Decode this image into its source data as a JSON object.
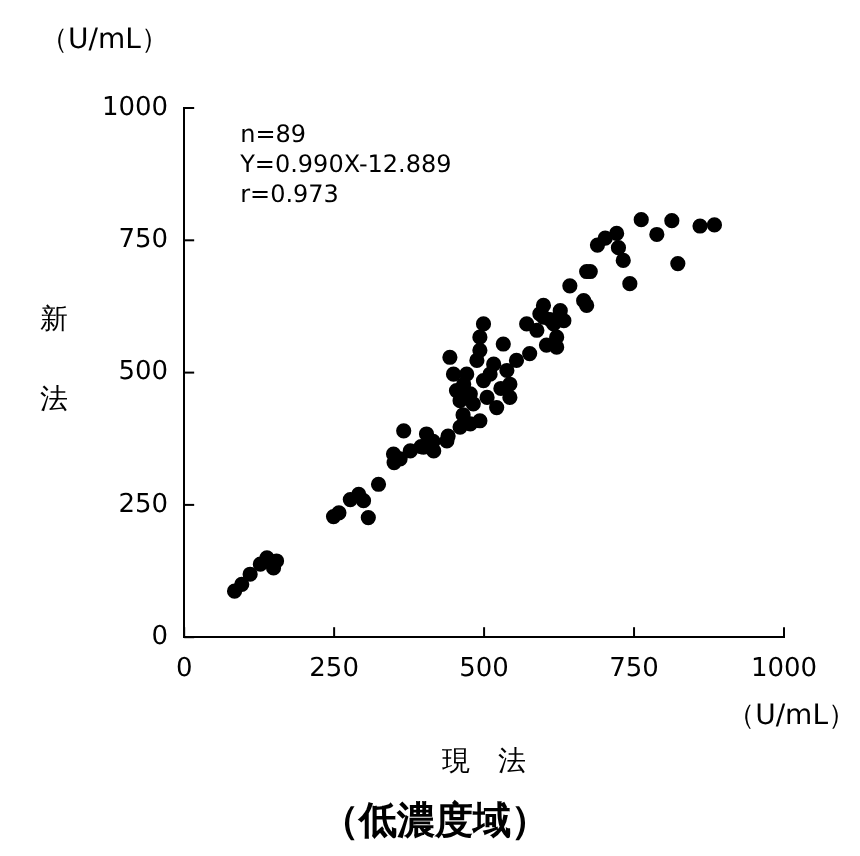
{
  "chart_data": {
    "type": "scatter",
    "title": "（低濃度域）",
    "xlabel": "現　法",
    "ylabel": "新法",
    "annotations": [
      "（U/mL）",
      "（U/mL）",
      "n=89",
      "Y=0.990X-12.889",
      "r=0.973"
    ],
    "xlim": [
      0,
      1000
    ],
    "ylim": [
      0,
      1000
    ],
    "xticks": [
      0,
      250,
      500,
      750,
      1000
    ],
    "yticks": [
      0,
      250,
      500,
      750,
      1000
    ],
    "grid": false,
    "legend": false,
    "marker": "circle",
    "series": [
      {
        "color": "#000000",
        "x": [
          84,
          96,
          110,
          127,
          138,
          149,
          154,
          249,
          258,
          277,
          291,
          299,
          307,
          324,
          349,
          360,
          366,
          377,
          399,
          404,
          416,
          438,
          460,
          477,
          493,
          443,
          449,
          454,
          460,
          466,
          471,
          477,
          482,
          488,
          493,
          499,
          493,
          499,
          505,
          510,
          516,
          521,
          532,
          538,
          543,
          543,
          554,
          571,
          588,
          599,
          616,
          621,
          621,
          627,
          762,
          788,
          813,
          823,
          860,
          884,
          721,
          702,
          689,
          724,
          732,
          743,
          671,
          677,
          643,
          666,
          671,
          599,
          593,
          633,
          604,
          576,
          528,
          465,
          350,
          440,
          610,
          395,
          415
        ],
        "values": [
          87,
          100,
          119,
          138,
          150,
          131,
          144,
          228,
          235,
          260,
          270,
          258,
          226,
          289,
          346,
          337,
          390,
          352,
          359,
          384,
          352,
          371,
          397,
          403,
          409,
          529,
          497,
          466,
          447,
          478,
          497,
          460,
          441,
          523,
          567,
          592,
          542,
          485,
          453,
          497,
          516,
          434,
          554,
          504,
          478,
          453,
          523,
          592,
          580,
          605,
          592,
          567,
          548,
          617,
          789,
          761,
          787,
          706,
          777,
          779,
          763,
          754,
          741,
          736,
          712,
          668,
          691,
          691,
          664,
          636,
          627,
          627,
          611,
          598,
          552,
          536,
          470,
          420,
          330,
          380,
          600,
          360,
          370
        ]
      }
    ]
  }
}
